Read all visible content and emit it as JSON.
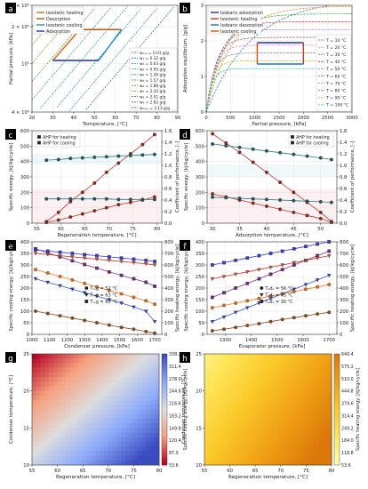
{
  "chart_data": [
    {
      "panel": "a",
      "type": "line",
      "scale_y": "log",
      "xlabel": "Temperature, [°C]",
      "ylabel": "Partial pressure, [kPa]",
      "xlim": [
        20,
        90
      ],
      "ylim": [
        4,
        30
      ],
      "xticks": [
        20,
        30,
        40,
        50,
        60,
        70,
        80,
        90
      ],
      "yticks": [
        4,
        10,
        20,
        30
      ],
      "ytick_labels": [
        "4 × 10⁰",
        "10¹",
        "2 × 10¹",
        "3 × 10¹"
      ],
      "legend_cycle": [
        "Isosteric heating",
        "Desorption",
        "Isosteric cooling",
        "Adsorption"
      ],
      "legend_w": [
        "wₘᵢₙ = 0.01 g/g",
        "w₁ = 0.32 g/g",
        "w₂ = 0.63 g/g",
        "w₃ = 0.95 g/g",
        "w₄ = 1.26 g/g",
        "w₅ = 1.57 g/g",
        "w₆ = 1.88 g/g",
        "w₇ = 2.20 g/g",
        "w₈ = 2.51 g/g",
        "w₉ = 2.82 g/g",
        "wₘₐₓ = 3.13 g/g"
      ],
      "cycle": [
        [
          30,
          10.6
        ],
        [
          43,
          19
        ],
        [
          63,
          19
        ],
        [
          52,
          10.6
        ]
      ]
    },
    {
      "panel": "b",
      "type": "line",
      "xlabel": "Partial pressure, [kPa]",
      "ylabel": "Adsorption equilibrium, [g/g]",
      "xlim": [
        0,
        3000
      ],
      "ylim": [
        0,
        3
      ],
      "xticks": [
        0,
        500,
        1000,
        1500,
        2000,
        2500,
        3000
      ],
      "yticks": [
        0,
        1,
        2,
        3
      ],
      "legend_cycle": [
        "Isobaric adsorption",
        "Isosteric heating",
        "Isobaric desorption",
        "Isosteric cooling"
      ],
      "legend_T": [
        "T = 10 °C",
        "T = 20 °C",
        "T = 30 °C",
        "T = 40 °C",
        "T = 50 °C",
        "T = 60 °C",
        "T = 70 °C",
        "T = 80 °C",
        "T = 90 °C",
        "T = 100 °C"
      ],
      "cycle_box": [
        1050,
        2000,
        1.35,
        1.95
      ]
    },
    {
      "panel": "c",
      "type": "line",
      "xlabel": "Regeneration temperature, [°C]",
      "ylabel": "Specific energy, [kJ/kg/cycle]",
      "ylabel_right": "Coefficient of performance, [-]",
      "xlim": [
        54,
        81
      ],
      "ylim": [
        0,
        600
      ],
      "ylim_right": [
        0,
        1.6
      ],
      "xticks": [
        55,
        60,
        65,
        70,
        75,
        80
      ],
      "yticks": [
        0,
        100,
        200,
        300,
        400,
        500,
        600
      ],
      "yticks_right": [
        "0.0",
        "0.2",
        "0.4",
        "0.6",
        "0.8",
        "1.0",
        "1.2",
        "1.4",
        "1.6"
      ],
      "legend": [
        "AHP for heating",
        "AHP for cooling"
      ],
      "x": [
        57,
        59.5,
        62,
        64.5,
        67,
        69.5,
        72,
        74.5,
        77,
        79.5
      ],
      "series": [
        {
          "y": [
            10,
            70,
            140,
            200,
            260,
            330,
            390,
            450,
            510,
            575
          ]
        },
        {
          "y": [
            5,
            20,
            40,
            60,
            80,
            100,
            120,
            135,
            150,
            170
          ]
        },
        {
          "y_right": [
            1.09,
            1.1,
            1.12,
            1.13,
            1.14,
            1.15,
            1.16,
            1.17,
            1.18,
            1.19
          ]
        },
        {
          "y_right": [
            0.42,
            0.42,
            0.42,
            0.42,
            0.42,
            0.42,
            0.41,
            0.41,
            0.41,
            0.41
          ]
        }
      ]
    },
    {
      "panel": "d",
      "type": "line",
      "xlabel": "Adsorption temperature, [°C]",
      "ylabel": "Specific energy, [kJ/kg/cycle]",
      "ylabel_right": "Coefficient of performance, [-]",
      "xlim": [
        29,
        53
      ],
      "ylim": [
        0,
        600
      ],
      "ylim_right": [
        0,
        1.6
      ],
      "xticks": [
        30,
        35,
        40,
        45,
        50
      ],
      "yticks": [
        0,
        100,
        200,
        300,
        400,
        500,
        600
      ],
      "yticks_right": [
        "0.0",
        "0.2",
        "0.4",
        "0.6",
        "0.8",
        "1.0",
        "1.2",
        "1.4",
        "1.6"
      ],
      "legend": [
        "AHP for heating",
        "AHP for cooling"
      ],
      "x": [
        30,
        32.5,
        35,
        37.5,
        40,
        42.5,
        45,
        47.5,
        50,
        52
      ],
      "series": [
        {
          "y": [
            580,
            520,
            460,
            395,
            330,
            265,
            200,
            135,
            70,
            10
          ]
        },
        {
          "y": [
            190,
            170,
            150,
            130,
            110,
            90,
            70,
            50,
            30,
            5
          ]
        },
        {
          "y_right": [
            1.37,
            1.34,
            1.31,
            1.28,
            1.25,
            1.22,
            1.19,
            1.16,
            1.13,
            1.1
          ]
        },
        {
          "y_right": [
            0.45,
            0.44,
            0.43,
            0.42,
            0.41,
            0.4,
            0.39,
            0.38,
            0.37,
            0.36
          ]
        }
      ]
    },
    {
      "panel": "e",
      "type": "line",
      "xlabel": "Condenser pressure, [kPa]",
      "ylabel": "Specific cooling energy, [kJ/kg/cycle]",
      "ylabel_right": "Specific heating energy, [kJ/kg/cycle]",
      "xlim": [
        1000,
        1740
      ],
      "ylim": [
        0,
        400
      ],
      "ylim_right": [
        0,
        800
      ],
      "xticks": [
        1000,
        1100,
        1200,
        1300,
        1400,
        1500,
        1600,
        1700
      ],
      "yticks": [
        0,
        50,
        100,
        150,
        200,
        250,
        300,
        350,
        400
      ],
      "yticks_right": [
        0,
        100,
        200,
        300,
        400,
        500,
        600,
        700,
        800
      ],
      "legend": [
        "Tᵣₑg = 52 °C",
        "Tᵣₑg = 63 °C",
        "Tᵣₑg = 80 °C"
      ],
      "x": [
        1020,
        1090,
        1160,
        1230,
        1300,
        1370,
        1440,
        1510,
        1580,
        1650,
        1700
      ],
      "series": [
        {
          "y": [
            100,
            90,
            80,
            70,
            60,
            50,
            40,
            30,
            22,
            12,
            5
          ]
        },
        {
          "y": [
            240,
            225,
            210,
            195,
            180,
            165,
            150,
            135,
            118,
            100,
            55
          ]
        },
        {
          "y": [
            370,
            352,
            335,
            318,
            302,
            286,
            270,
            255,
            240,
            225,
            208
          ]
        },
        {
          "y_right": [
            560,
            530,
            500,
            470,
            440,
            410,
            380,
            350,
            320,
            290,
            260
          ]
        },
        {
          "y_right": [
            700,
            690,
            680,
            670,
            660,
            650,
            640,
            630,
            620,
            610,
            600
          ]
        },
        {
          "y_right": [
            730,
            720,
            710,
            700,
            690,
            680,
            670,
            660,
            650,
            640,
            630
          ]
        }
      ]
    },
    {
      "panel": "f",
      "type": "line",
      "xlabel": "Evaporator pressure, [kPa]",
      "ylabel": "Specific cooling energy, [kJ/kg/cycle]",
      "ylabel_right": "Specific heating energy, [kJ/kg/cycle]",
      "xlim": [
        1230,
        1730
      ],
      "ylim": [
        0,
        400
      ],
      "ylim_right": [
        0,
        800
      ],
      "xticks": [
        1300,
        1400,
        1500,
        1600,
        1700
      ],
      "yticks": [
        0,
        50,
        100,
        150,
        200,
        250,
        300,
        350,
        400
      ],
      "yticks_right": [
        0,
        100,
        200,
        300,
        400,
        500,
        600,
        700,
        800
      ],
      "legend": [
        "Tₐdₛ = 56 °C",
        "Tₐdₛ = 45 °C",
        "Tₐdₛ = 30 °C"
      ],
      "x": [
        1250,
        1295,
        1340,
        1385,
        1430,
        1475,
        1520,
        1565,
        1610,
        1655,
        1700
      ],
      "series": [
        {
          "y": [
            15,
            22,
            30,
            38,
            46,
            55,
            64,
            72,
            80,
            88,
            95
          ]
        },
        {
          "y": [
            55,
            75,
            95,
            115,
            135,
            155,
            175,
            195,
            215,
            235,
            255
          ]
        },
        {
          "y": [
            160,
            180,
            200,
            220,
            240,
            260,
            280,
            300,
            320,
            340,
            360
          ]
        },
        {
          "y_right": [
            230,
            250,
            270,
            290,
            310,
            330,
            350,
            370,
            390,
            410,
            430
          ]
        },
        {
          "y_right": [
            480,
            500,
            520,
            540,
            560,
            580,
            600,
            620,
            640,
            660,
            680
          ]
        },
        {
          "y_right": [
            600,
            620,
            640,
            660,
            680,
            700,
            720,
            740,
            760,
            780,
            800
          ]
        }
      ]
    },
    {
      "panel": "g",
      "type": "heatmap",
      "xlabel": "Regeneration temperature, [°C]",
      "ylabel": "Condenser temperature, [°C]",
      "xlim": [
        55,
        80
      ],
      "ylim": [
        10,
        25
      ],
      "xticks": [
        55,
        60,
        65,
        70,
        75,
        80
      ],
      "yticks": [
        10,
        15,
        20,
        25
      ],
      "colorbar_label": "Specific cooling energy, [kJ/kg/cycle]",
      "colorbar_ticks": [
        "53.6",
        "87.0",
        "120.4",
        "149.8",
        "183.2",
        "216.6",
        "244.6",
        "278.0",
        "311.4",
        "338.2"
      ]
    },
    {
      "panel": "h",
      "type": "heatmap",
      "xlabel": "Regeneration temperature, [°C]",
      "ylabel": "Condenser temperature, [°C]",
      "xlim": [
        55,
        80
      ],
      "ylim": [
        10,
        25
      ],
      "xticks": [
        55,
        60,
        65,
        70,
        75,
        80
      ],
      "yticks": [
        10,
        15,
        20,
        25
      ],
      "colorbar_label": "Specific heating energy, [kJ/kg/cycle]",
      "colorbar_ticks": [
        "53.6",
        "118.8",
        "184.0",
        "249.2",
        "314.4",
        "379.6",
        "444.8",
        "510.0",
        "575.2",
        "640.4"
      ]
    }
  ]
}
